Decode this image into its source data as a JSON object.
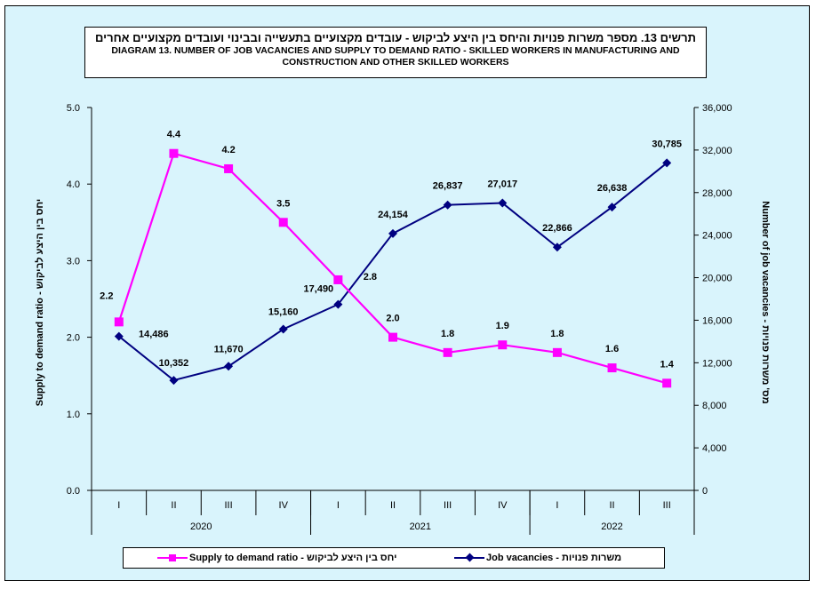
{
  "title": {
    "hebrew": "תרשים 13. מספר משרות פנויות והיחס בין היצע לביקוש - עובדים מקצועיים בתעשייה ובבינוי ועובדים מקצועיים אחרים",
    "english_line1": "DIAGRAM 13. NUMBER OF JOB VACANCIES AND SUPPLY TO DEMAND RATIO - SKILLED WORKERS IN MANUFACTURING AND",
    "english_line2": "CONSTRUCTION AND OTHER SKILLED WORKERS"
  },
  "colors": {
    "background": "#d9f4fc",
    "ratio_series": "#ff00ff",
    "vacancies_series": "#000080"
  },
  "chart_data": {
    "type": "line",
    "title": "DIAGRAM 13. NUMBER OF JOB VACANCIES AND SUPPLY TO DEMAND RATIO - SKILLED WORKERS IN MANUFACTURING AND CONSTRUCTION AND OTHER SKILLED WORKERS",
    "categories": [
      "I",
      "II",
      "III",
      "IV",
      "I",
      "II",
      "III",
      "IV",
      "I",
      "II",
      "III"
    ],
    "year_groups": [
      {
        "label": "2020",
        "quarters": 4
      },
      {
        "label": "2021",
        "quarters": 4
      },
      {
        "label": "2022",
        "quarters": 3
      }
    ],
    "ylabel_left": "Supply to demand ratio - יחס בין היצע לביקוש",
    "ylabel_right": "Number of job vacancies - מס' משרות פנויות",
    "ylim_left": [
      0,
      5
    ],
    "ylim_right": [
      0,
      36000
    ],
    "yticks_left": [
      "0.0",
      "1.0",
      "2.0",
      "3.0",
      "4.0",
      "5.0"
    ],
    "yticks_right": [
      "0",
      "4,000",
      "8,000",
      "12,000",
      "16,000",
      "20,000",
      "24,000",
      "28,000",
      "32,000",
      "36,000"
    ],
    "grid": false,
    "legend_position": "bottom",
    "series": [
      {
        "name": "Supply to demand ratio - יחס בין היצע לביקוש",
        "axis": "left",
        "marker": "square",
        "values": [
          2.2,
          4.4,
          4.2,
          3.5,
          2.75,
          2.0,
          1.8,
          1.9,
          1.8,
          1.6,
          1.4
        ],
        "labels": [
          "2.2",
          "4.4",
          "4.2",
          "3.5",
          "2.8",
          "2.0",
          "1.8",
          "1.9",
          "1.8",
          "1.6",
          "1.4"
        ]
      },
      {
        "name": "Job vacancies - משרות פנויות",
        "axis": "right",
        "marker": "diamond",
        "values": [
          14486,
          10352,
          11670,
          15160,
          17490,
          24154,
          26837,
          27017,
          22866,
          26638,
          30785
        ],
        "labels": [
          "14,486",
          "10,352",
          "11,670",
          "15,160",
          "17,490",
          "24,154",
          "26,837",
          "27,017",
          "22,866",
          "26,638",
          "30,785"
        ]
      }
    ]
  }
}
